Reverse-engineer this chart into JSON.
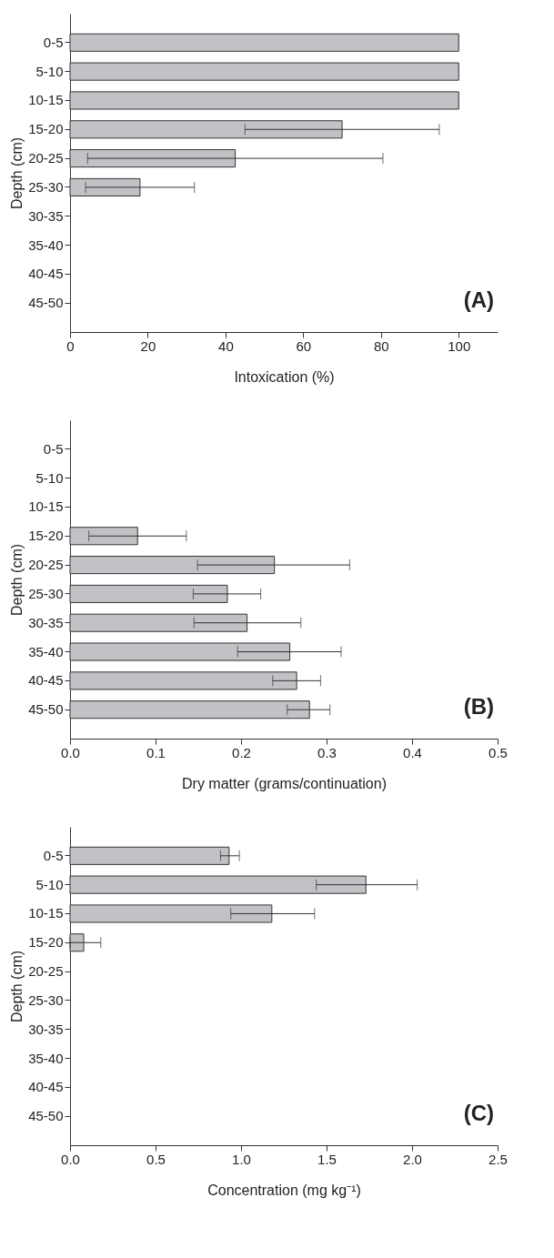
{
  "chart_data": [
    {
      "type": "bar",
      "orientation": "horizontal",
      "color": "#c1c2c5",
      "categories": [
        "0-5",
        "5-10",
        "10-15",
        "15-20",
        "20-25",
        "25-30",
        "30-35",
        "35-40",
        "40-45",
        "45-50"
      ],
      "values": [
        100,
        100,
        100,
        70,
        42.5,
        18,
        null,
        null,
        null,
        null
      ],
      "errors": [
        null,
        null,
        null,
        [
          45,
          95
        ],
        [
          4.5,
          80.5
        ],
        [
          4,
          32
        ],
        null,
        null,
        null,
        null
      ],
      "xlim": [
        0,
        110
      ],
      "xticks": [
        0,
        20,
        40,
        60,
        80,
        100
      ],
      "xlabel": "Intoxication (%)",
      "ylabel": "Depth (cm)",
      "annotations": [
        "(A)"
      ]
    },
    {
      "type": "bar",
      "orientation": "horizontal",
      "color": "#c1c2c5",
      "categories": [
        "0-5",
        "5-10",
        "10-15",
        "15-20",
        "20-25",
        "25-30",
        "30-35",
        "35-40",
        "40-45",
        "45-50"
      ],
      "values": [
        null,
        null,
        null,
        0.079,
        0.239,
        0.184,
        0.207,
        0.257,
        0.265,
        0.28
      ],
      "errors": [
        null,
        null,
        null,
        [
          0.022,
          0.136
        ],
        [
          0.149,
          0.327
        ],
        [
          0.144,
          0.223
        ],
        [
          0.145,
          0.27
        ],
        [
          0.196,
          0.317
        ],
        [
          0.237,
          0.293
        ],
        [
          0.254,
          0.304
        ]
      ],
      "xlim": [
        0,
        0.5
      ],
      "xticks": [
        {
          "value": 0,
          "label": "0.0"
        },
        0.1,
        0.2,
        0.3,
        0.4,
        0.5
      ],
      "xlabel": "Dry matter (grams/continuation)",
      "ylabel": "Depth (cm)",
      "annotations": [
        "(B)"
      ]
    },
    {
      "type": "bar",
      "orientation": "horizontal",
      "color": "#c1c2c5",
      "categories": [
        "0-5",
        "5-10",
        "10-15",
        "15-20",
        "20-25",
        "25-30",
        "30-35",
        "35-40",
        "40-45",
        "45-50"
      ],
      "values": [
        0.93,
        1.73,
        1.18,
        0.08,
        null,
        null,
        null,
        null,
        null,
        null
      ],
      "errors": [
        [
          0.88,
          0.99
        ],
        [
          1.44,
          2.03
        ],
        [
          0.94,
          1.43
        ],
        [
          0,
          0.18
        ],
        null,
        null,
        null,
        null,
        null,
        null
      ],
      "xlim": [
        0,
        2.5
      ],
      "xticks": [
        {
          "value": 0,
          "label": "0.0"
        },
        0.5,
        {
          "value": 1,
          "label": "1.0"
        },
        1.5,
        {
          "value": 2,
          "label": "2.0"
        },
        2.5
      ],
      "xlabel": "Concentration (mg kg⁻¹)",
      "ylabel": "Depth (cm)",
      "annotations": [
        "(C)"
      ]
    }
  ]
}
